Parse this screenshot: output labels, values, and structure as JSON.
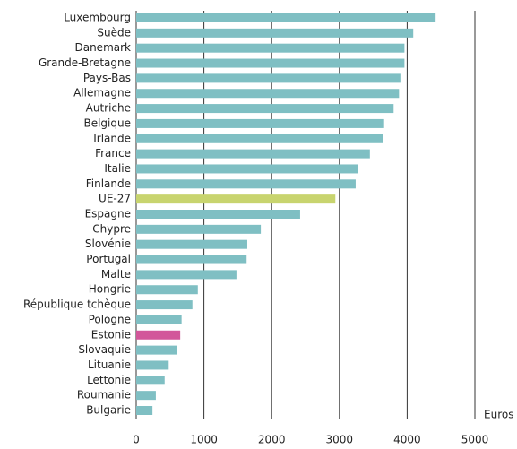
{
  "chart_data": {
    "type": "bar",
    "orientation": "horizontal",
    "x_label": "Euros",
    "categories": [
      "Luxembourg",
      "Suède",
      "Danemark",
      "Grande-Bretagne",
      "Pays-Bas",
      "Allemagne",
      "Autriche",
      "Belgique",
      "Irlande",
      "France",
      "Italie",
      "Finlande",
      "UE-27",
      "Espagne",
      "Chypre",
      "Slovénie",
      "Portugal",
      "Malte",
      "Hongrie",
      "République tchèque",
      "Pologne",
      "Estonie",
      "Slovaquie",
      "Lituanie",
      "Lettonie",
      "Roumanie",
      "Bulgarie"
    ],
    "values": [
      4420,
      4090,
      3960,
      3960,
      3900,
      3880,
      3800,
      3660,
      3640,
      3450,
      3270,
      3240,
      2940,
      2420,
      1840,
      1640,
      1630,
      1480,
      910,
      830,
      670,
      650,
      600,
      480,
      420,
      290,
      240
    ],
    "colors": [
      "#7fbfc3",
      "#7fbfc3",
      "#7fbfc3",
      "#7fbfc3",
      "#7fbfc3",
      "#7fbfc3",
      "#7fbfc3",
      "#7fbfc3",
      "#7fbfc3",
      "#7fbfc3",
      "#7fbfc3",
      "#7fbfc3",
      "#c8d46e",
      "#7fbfc3",
      "#7fbfc3",
      "#7fbfc3",
      "#7fbfc3",
      "#7fbfc3",
      "#7fbfc3",
      "#7fbfc3",
      "#7fbfc3",
      "#d2579a",
      "#7fbfc3",
      "#7fbfc3",
      "#7fbfc3",
      "#7fbfc3",
      "#7fbfc3"
    ],
    "xlim": [
      0,
      5000
    ],
    "xticks": [
      0,
      1000,
      2000,
      3000,
      4000,
      5000
    ],
    "grid": true
  }
}
